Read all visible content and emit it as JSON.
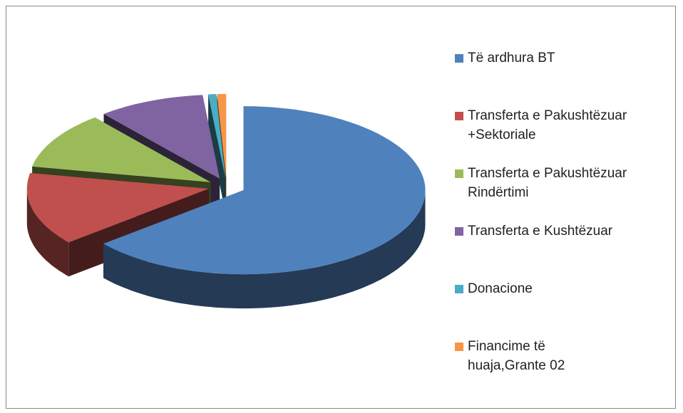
{
  "chart_data": {
    "type": "pie",
    "categories": [
      "Të ardhura BT",
      "Transferta e Pakushtëzuar +Sektoriale",
      "Transferta e Pakushtëzuar Rindërtimi",
      "Transferta e Kushtëzuar",
      "Donacione",
      "Financime të huaja,Grante 02"
    ],
    "values": [
      64,
      14,
      11,
      9.5,
      0.7,
      0.8
    ],
    "colors": [
      "#4f81bd",
      "#c0504d",
      "#9bbb59",
      "#8064a2",
      "#4bacc6",
      "#f79646"
    ],
    "legend": "right"
  }
}
